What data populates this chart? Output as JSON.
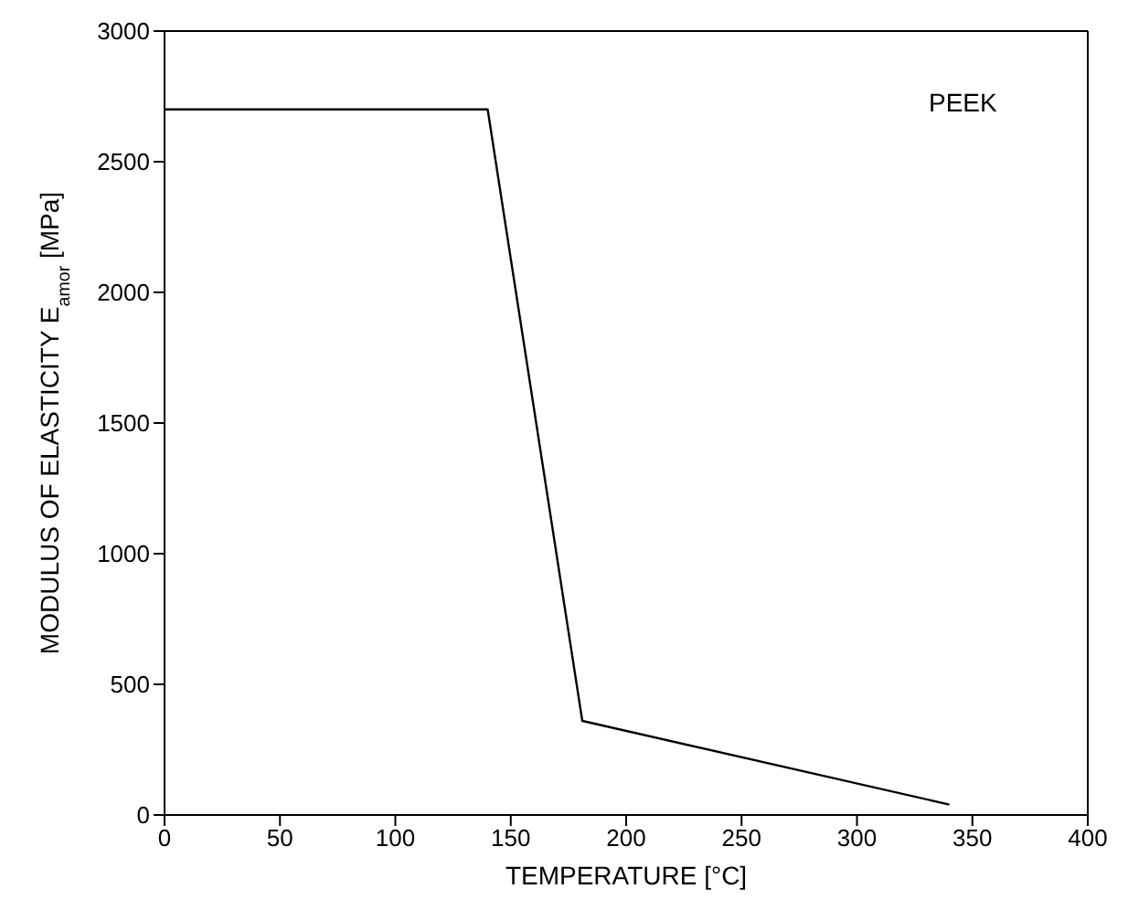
{
  "chart_data": {
    "type": "line",
    "xlabel": "TEMPERATURE [°C]",
    "ylabel": "MODULUS OF ELASTICITY E$_{amor}$ [MPa]",
    "annotations": [
      "PEEK"
    ],
    "x": [
      0,
      140,
      181,
      340
    ],
    "series": [
      {
        "color": "#000000",
        "values": [
          2700,
          2700,
          360,
          40
        ]
      }
    ],
    "xlim": [
      0,
      400
    ],
    "xticks": [
      0,
      50,
      100,
      150,
      200,
      250,
      300,
      350,
      400
    ],
    "ylim": [
      0,
      3000
    ],
    "yticks": [
      0,
      500,
      1000,
      1500,
      2000,
      2500,
      3000
    ],
    "grid": false,
    "legend": false,
    "marker": "none",
    "line_style": "solid"
  }
}
